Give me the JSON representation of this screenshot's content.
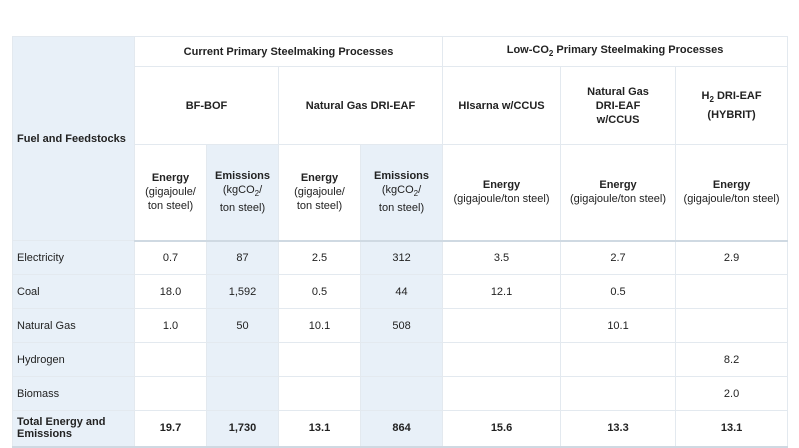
{
  "row_label_header": "Fuel and Feedstocks",
  "groups": {
    "current": "Current Primary Steelmaking Processes",
    "low_co2_prefix": "Low-CO",
    "low_co2_sub": "2",
    "low_co2_suffix": " Primary Steelmaking Processes"
  },
  "processes": {
    "bf_bof": "BF-BOF",
    "ng_dri_eaf": "Natural Gas DRI-EAF",
    "hisarna": "HIsarna w/CCUS",
    "ng_dri_eaf_ccus": "Natural Gas\nDRI-EAF\nw/CCUS",
    "h2_prefix": "H",
    "h2_sub": "2",
    "h2_rest": " DRI-EAF",
    "h2_line2": "(HYBRIT)"
  },
  "metrics": {
    "energy": "Energy",
    "energy_unit_split": "(gigajoule/\nton steel)",
    "emissions": "Emissions",
    "emissions_unit_a": "(kgCO",
    "emissions_unit_sub": "2",
    "emissions_unit_b": "/\nton steel)",
    "energy_unit_wide": "(gigajoule/ton steel)"
  },
  "rows": [
    {
      "label": "Electricity",
      "values": [
        "0.7",
        "87",
        "2.5",
        "312",
        "3.5",
        "2.7",
        "2.9"
      ]
    },
    {
      "label": "Coal",
      "values": [
        "18.0",
        "1,592",
        "0.5",
        "44",
        "12.1",
        "0.5",
        ""
      ]
    },
    {
      "label": "Natural Gas",
      "values": [
        "1.0",
        "50",
        "10.1",
        "508",
        "",
        "10.1",
        ""
      ]
    },
    {
      "label": "Hydrogen",
      "values": [
        "",
        "",
        "",
        "",
        "",
        "",
        "8.2"
      ]
    },
    {
      "label": "Biomass",
      "values": [
        "",
        "",
        "",
        "",
        "",
        "",
        "2.0"
      ]
    },
    {
      "label": "Total Energy and\nEmissions",
      "values": [
        "19.7",
        "1,730",
        "13.1",
        "864",
        "15.6",
        "13.3",
        "13.1"
      ]
    }
  ]
}
